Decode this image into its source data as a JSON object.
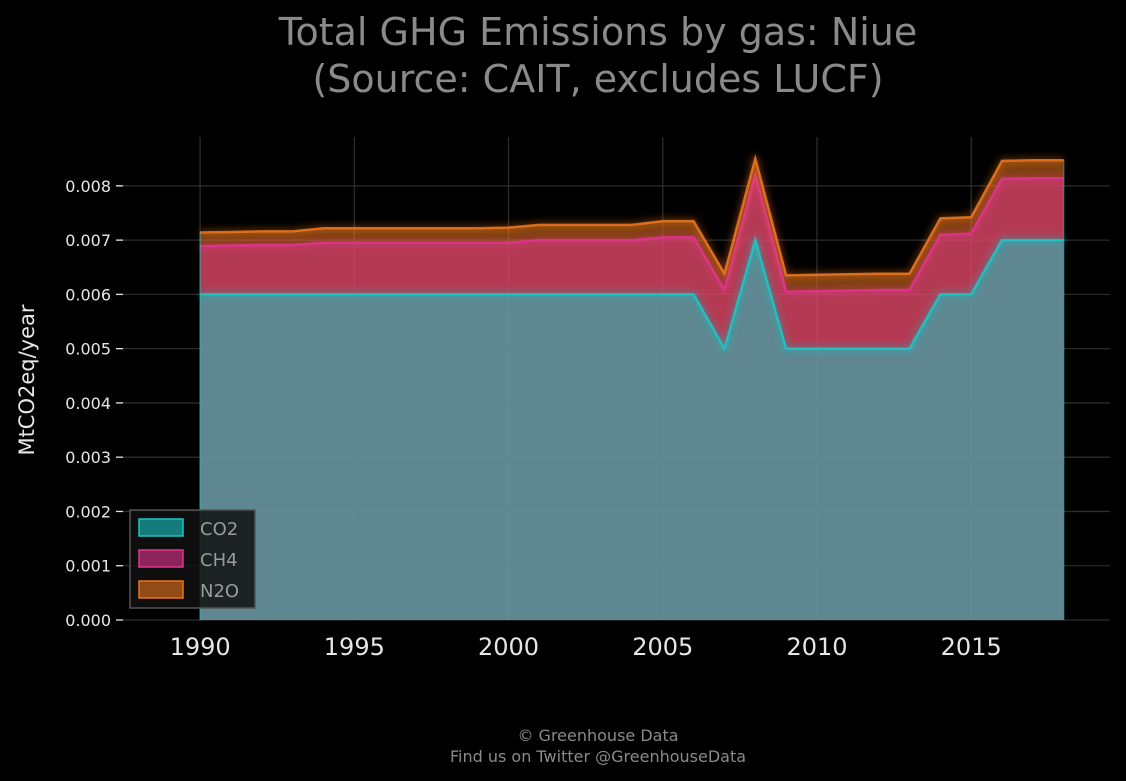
{
  "chart_data": {
    "type": "area",
    "stacked": true,
    "title": "Total GHG Emissions by gas: Niue",
    "subtitle": "(Source: CAIT, excludes LUCF)",
    "ylabel": "MtCO2eq/year",
    "xlabel": "",
    "x": [
      1990,
      1991,
      1992,
      1993,
      1994,
      1995,
      1996,
      1997,
      1998,
      1999,
      2000,
      2001,
      2002,
      2003,
      2004,
      2005,
      2006,
      2007,
      2008,
      2009,
      2010,
      2011,
      2012,
      2013,
      2014,
      2015,
      2016,
      2017,
      2018
    ],
    "series": [
      {
        "name": "CO2",
        "color": "#19c6c4",
        "values": [
          0.006,
          0.006,
          0.006,
          0.006,
          0.006,
          0.006,
          0.006,
          0.006,
          0.006,
          0.006,
          0.006,
          0.006,
          0.006,
          0.006,
          0.006,
          0.006,
          0.006,
          0.005,
          0.007,
          0.005,
          0.005,
          0.005,
          0.005,
          0.005,
          0.006,
          0.006,
          0.007,
          0.007,
          0.007
        ]
      },
      {
        "name": "CH4",
        "color": "#e0358d",
        "values": [
          0.00089,
          0.0009,
          0.00091,
          0.00091,
          0.00095,
          0.00095,
          0.00095,
          0.00095,
          0.00095,
          0.00095,
          0.00095,
          0.001,
          0.001,
          0.001,
          0.001,
          0.00105,
          0.00105,
          0.00108,
          0.0012,
          0.00105,
          0.00106,
          0.00107,
          0.00108,
          0.00108,
          0.0011,
          0.00112,
          0.00113,
          0.00114,
          0.00114
        ]
      },
      {
        "name": "N2O",
        "color": "#e8741c",
        "values": [
          0.00025,
          0.00025,
          0.00025,
          0.00025,
          0.00027,
          0.00027,
          0.00027,
          0.00027,
          0.00027,
          0.00027,
          0.00028,
          0.00028,
          0.00028,
          0.00028,
          0.00028,
          0.0003,
          0.0003,
          0.0003,
          0.0003,
          0.0003,
          0.0003,
          0.0003,
          0.0003,
          0.0003,
          0.0003,
          0.0003,
          0.00033,
          0.00033,
          0.00033
        ]
      }
    ],
    "xlim": [
      1987.5,
      2019.5
    ],
    "ylim": [
      0,
      0.0089
    ],
    "xticks": [
      "1990",
      "1995",
      "2000",
      "2005",
      "2010",
      "2015"
    ],
    "yticks": [
      "0.000",
      "0.001",
      "0.002",
      "0.003",
      "0.004",
      "0.005",
      "0.006",
      "0.007",
      "0.008"
    ],
    "grid": true,
    "legend_position": "bottom-left"
  },
  "footer": {
    "copyright": "© Greenhouse Data",
    "twitter": "Find us on Twitter @GreenhouseData"
  }
}
